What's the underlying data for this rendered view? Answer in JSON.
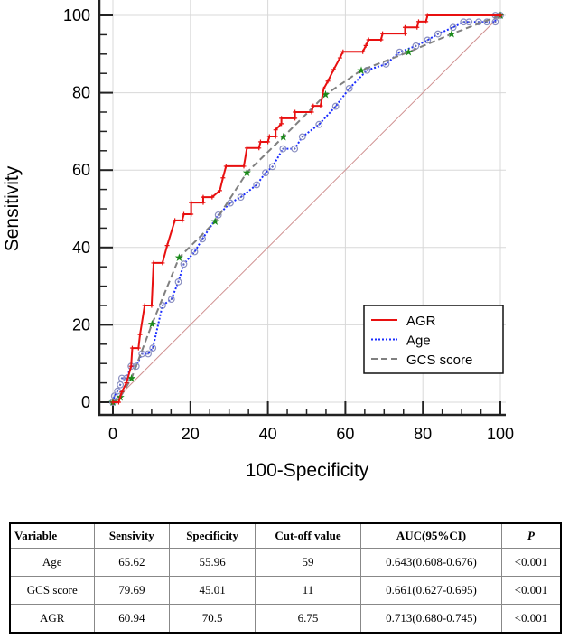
{
  "chart_data": {
    "type": "line",
    "title": "",
    "xlabel": "100-Specificity",
    "ylabel": "Sensitivity",
    "xlim": [
      0,
      100
    ],
    "ylim": [
      0,
      100
    ],
    "xticks": [
      0,
      20,
      40,
      60,
      80,
      100
    ],
    "yticks": [
      0,
      20,
      40,
      60,
      80,
      100
    ],
    "grid": true,
    "legend_position": "bottom-right",
    "series": [
      {
        "name": "AGR",
        "color": "#e81010",
        "style": "solid",
        "marker": "plus",
        "points": [
          [
            0,
            0
          ],
          [
            1.5,
            0
          ],
          [
            2.3,
            2.7
          ],
          [
            3.5,
            5
          ],
          [
            4.7,
            9.3
          ],
          [
            5,
            14
          ],
          [
            6.6,
            14
          ],
          [
            7,
            17.5
          ],
          [
            8.2,
            25
          ],
          [
            10,
            25
          ],
          [
            10.5,
            36
          ],
          [
            12.8,
            36
          ],
          [
            14,
            40.5
          ],
          [
            16,
            47
          ],
          [
            17.9,
            47
          ],
          [
            18.3,
            48.6
          ],
          [
            20.2,
            48.6
          ],
          [
            20.2,
            51.6
          ],
          [
            23.3,
            51.6
          ],
          [
            23.3,
            53
          ],
          [
            25.6,
            53
          ],
          [
            27.6,
            54.7
          ],
          [
            28.4,
            58
          ],
          [
            29.2,
            61
          ],
          [
            33.8,
            61
          ],
          [
            34.6,
            65.7
          ],
          [
            37.7,
            65.7
          ],
          [
            38.1,
            67.3
          ],
          [
            40,
            67.3
          ],
          [
            40.4,
            68.7
          ],
          [
            42,
            68.7
          ],
          [
            42,
            70.4
          ],
          [
            43.5,
            72
          ],
          [
            43.5,
            73.4
          ],
          [
            47,
            73.4
          ],
          [
            47,
            75
          ],
          [
            51.3,
            75
          ],
          [
            51.7,
            76.6
          ],
          [
            53.6,
            76.6
          ],
          [
            54.4,
            81
          ],
          [
            55.5,
            83
          ],
          [
            57,
            86
          ],
          [
            58.6,
            89
          ],
          [
            59.4,
            90.6
          ],
          [
            64.5,
            90.6
          ],
          [
            65.3,
            92.2
          ],
          [
            66,
            93.7
          ],
          [
            69.2,
            93.7
          ],
          [
            69.6,
            95.3
          ],
          [
            75.4,
            95.3
          ],
          [
            75.4,
            96.9
          ],
          [
            78.5,
            96.9
          ],
          [
            78.9,
            98.4
          ],
          [
            80.8,
            98.4
          ],
          [
            81.2,
            100
          ],
          [
            100,
            100
          ]
        ]
      },
      {
        "name": "Age",
        "color": "#1a2cff",
        "style": "dotted",
        "marker": "circle",
        "points": [
          [
            0,
            0
          ],
          [
            0.4,
            1.6
          ],
          [
            1.2,
            2.9
          ],
          [
            1.9,
            4.5
          ],
          [
            2.3,
            6.2
          ],
          [
            3.5,
            6.2
          ],
          [
            4.7,
            9.3
          ],
          [
            6,
            9.3
          ],
          [
            7.5,
            12.5
          ],
          [
            9.1,
            12.5
          ],
          [
            10.3,
            14
          ],
          [
            12.8,
            25
          ],
          [
            15.1,
            26.6
          ],
          [
            16.9,
            31.1
          ],
          [
            18.3,
            35.7
          ],
          [
            21.1,
            38.9
          ],
          [
            23.1,
            42.2
          ],
          [
            27.2,
            48.4
          ],
          [
            30.3,
            51.5
          ],
          [
            33,
            53
          ],
          [
            37.1,
            56.2
          ],
          [
            39.4,
            59.3
          ],
          [
            41.2,
            60.9
          ],
          [
            43.9,
            65.5
          ],
          [
            46.9,
            65.5
          ],
          [
            48.9,
            68.6
          ],
          [
            53.2,
            71.8
          ],
          [
            57.5,
            76.5
          ],
          [
            61,
            81.1
          ],
          [
            65.6,
            85.8
          ],
          [
            70.5,
            87.4
          ],
          [
            74,
            90.5
          ],
          [
            78.2,
            92.1
          ],
          [
            81.2,
            93.6
          ],
          [
            83.9,
            95.2
          ],
          [
            87.8,
            96.9
          ],
          [
            90.5,
            98.3
          ],
          [
            91.9,
            98.3
          ],
          [
            94.4,
            98.3
          ],
          [
            96.5,
            98.3
          ],
          [
            98.7,
            98.3
          ],
          [
            98.7,
            100
          ],
          [
            100,
            100
          ]
        ]
      },
      {
        "name": "GCS score",
        "color": "#808080",
        "style": "dashed",
        "marker": "star",
        "points": [
          [
            0,
            0
          ],
          [
            1.9,
            1.3
          ],
          [
            4.8,
            6.2
          ],
          [
            10.1,
            20.2
          ],
          [
            17.1,
            37.4
          ],
          [
            26.4,
            46.7
          ],
          [
            34.6,
            59.4
          ],
          [
            44,
            68.6
          ],
          [
            54.9,
            79.5
          ],
          [
            64.1,
            85.8
          ],
          [
            76.3,
            90.5
          ],
          [
            87.4,
            95.2
          ],
          [
            100,
            100
          ]
        ]
      }
    ],
    "reference_line": {
      "points": [
        [
          0,
          0
        ],
        [
          100,
          100
        ]
      ],
      "color": "#d09090"
    }
  },
  "table": {
    "headers": [
      "Variable",
      "Sensivity",
      "Specificity",
      "Cut-off value",
      "AUC(95%CI)",
      "P"
    ],
    "rows": [
      [
        "Age",
        "65.62",
        "55.96",
        "59",
        "0.643(0.608-0.676)",
        "<0.001"
      ],
      [
        "GCS score",
        "79.69",
        "45.01",
        "11",
        "0.661(0.627-0.695)",
        "<0.001"
      ],
      [
        "AGR",
        "60.94",
        "70.5",
        "6.75",
        "0.713(0.680-0.745)",
        "<0.001"
      ]
    ]
  }
}
